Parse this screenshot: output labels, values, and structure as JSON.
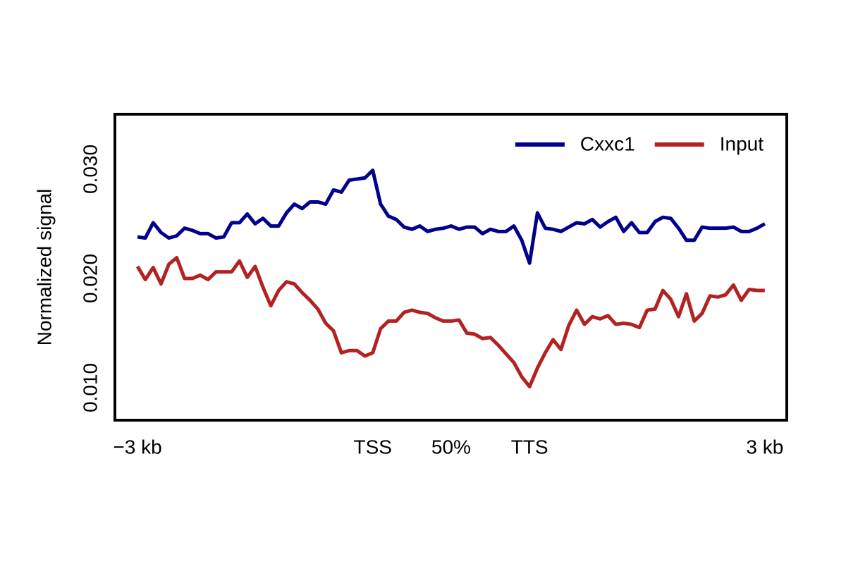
{
  "chart_data": {
    "type": "line",
    "ylabel": "Normalized signal",
    "x": [
      0,
      1,
      2,
      3,
      4,
      5,
      6,
      7,
      8,
      9,
      10,
      11,
      12,
      13,
      14,
      15,
      16,
      17,
      18,
      19,
      20,
      21,
      22,
      23,
      24,
      25,
      26,
      27,
      28,
      29,
      30,
      31,
      32,
      33,
      34,
      35,
      36,
      37,
      38,
      39,
      40,
      41,
      42,
      43,
      44,
      45,
      46,
      47,
      48,
      49,
      50,
      51,
      52,
      53,
      54,
      55,
      56,
      57,
      58,
      59,
      60,
      61,
      62,
      63,
      64,
      65,
      66,
      67,
      68,
      69,
      70,
      71,
      72,
      73,
      74,
      75,
      76,
      77,
      78,
      79,
      80
    ],
    "series": [
      {
        "name": "Cxxc1",
        "color": "#00008b",
        "values": [
          0.0238,
          0.0237,
          0.0251,
          0.0242,
          0.0237,
          0.0239,
          0.0246,
          0.0244,
          0.0241,
          0.0241,
          0.0237,
          0.0238,
          0.0251,
          0.0251,
          0.0259,
          0.025,
          0.0255,
          0.0248,
          0.0248,
          0.026,
          0.0268,
          0.0264,
          0.027,
          0.027,
          0.0268,
          0.0281,
          0.0279,
          0.029,
          0.0291,
          0.0292,
          0.0299,
          0.0268,
          0.0257,
          0.0254,
          0.0247,
          0.0245,
          0.0248,
          0.0243,
          0.0245,
          0.0246,
          0.0248,
          0.0245,
          0.0247,
          0.0247,
          0.0241,
          0.0245,
          0.0243,
          0.0243,
          0.0248,
          0.0235,
          0.0214,
          0.026,
          0.0246,
          0.0245,
          0.0243,
          0.0247,
          0.0251,
          0.025,
          0.0254,
          0.0247,
          0.0252,
          0.0256,
          0.0243,
          0.0251,
          0.0242,
          0.0242,
          0.0252,
          0.0256,
          0.0255,
          0.0246,
          0.0235,
          0.0235,
          0.0247,
          0.0246,
          0.0246,
          0.0246,
          0.0247,
          0.0243,
          0.0243,
          0.0246,
          0.025
        ]
      },
      {
        "name": "Input",
        "color": "#b22222",
        "values": [
          0.0211,
          0.0199,
          0.021,
          0.0195,
          0.0213,
          0.0219,
          0.02,
          0.02,
          0.0203,
          0.0199,
          0.0206,
          0.0206,
          0.0206,
          0.0216,
          0.0201,
          0.0211,
          0.0192,
          0.0175,
          0.0189,
          0.0197,
          0.0195,
          0.0187,
          0.018,
          0.0172,
          0.0159,
          0.0152,
          0.0132,
          0.0134,
          0.0134,
          0.0129,
          0.0132,
          0.0154,
          0.0161,
          0.0161,
          0.0169,
          0.0171,
          0.0169,
          0.0168,
          0.0164,
          0.0161,
          0.0161,
          0.0162,
          0.015,
          0.0149,
          0.0145,
          0.0146,
          0.0139,
          0.0131,
          0.0123,
          0.011,
          0.0101,
          0.0118,
          0.0132,
          0.0144,
          0.0135,
          0.0157,
          0.0171,
          0.0158,
          0.0165,
          0.0163,
          0.0166,
          0.0158,
          0.0159,
          0.0158,
          0.0155,
          0.0171,
          0.0172,
          0.0189,
          0.0181,
          0.0165,
          0.0186,
          0.0161,
          0.0168,
          0.0184,
          0.0183,
          0.0185,
          0.0194,
          0.018,
          0.019,
          0.0189,
          0.0189
        ]
      }
    ],
    "xlim": [
      -2.88,
      82.8
    ],
    "xticks": [
      {
        "value": 0,
        "label": "−3 kb"
      },
      {
        "value": 30,
        "label": "TSS"
      },
      {
        "value": 40,
        "label": "50%"
      },
      {
        "value": 50,
        "label": "TTS"
      },
      {
        "value": 80,
        "label": "3 kb"
      }
    ],
    "ylim": [
      0.00703,
      0.03503
    ],
    "yticks": [
      {
        "value": 0.01,
        "label": "0.010"
      },
      {
        "value": 0.02,
        "label": "0.020"
      },
      {
        "value": 0.03,
        "label": "0.030"
      }
    ],
    "legend": "topright"
  }
}
